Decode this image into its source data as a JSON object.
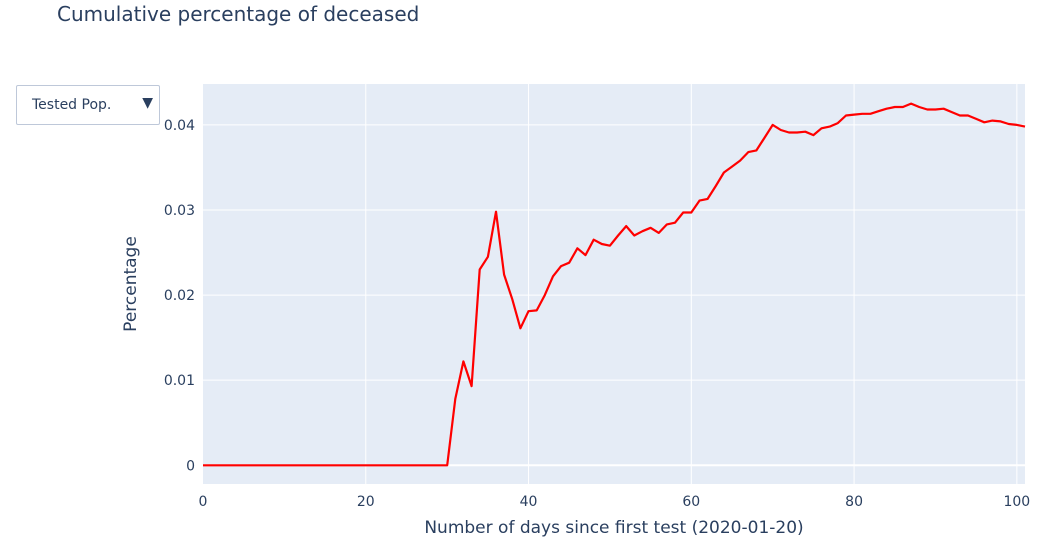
{
  "title": "Cumulative percentage of deceased",
  "dropdown": {
    "selected": "Tested Pop.",
    "arrow": "▼",
    "icon": "triangle-down"
  },
  "colors": {
    "plot_bg": "#e5ecf6",
    "grid": "#ffffff",
    "line": "#ff0000",
    "text": "#2a3f5f"
  },
  "chart_data": {
    "type": "line",
    "title": "Cumulative percentage of deceased",
    "xlabel": "Number of days since first test (2020-01-20)",
    "ylabel": "Percentage",
    "xlim": [
      0,
      101
    ],
    "ylim": [
      -0.0022,
      0.0448
    ],
    "xticks": [
      0,
      20,
      40,
      60,
      80,
      100
    ],
    "yticks": [
      0,
      0.01,
      0.02,
      0.03,
      0.04
    ],
    "ytick_labels": [
      "0",
      "0.01",
      "0.02",
      "0.03",
      "0.04"
    ],
    "grid": true,
    "legend": "none",
    "series": [
      {
        "x": [
          0,
          5,
          10,
          15,
          20,
          25,
          30,
          31,
          32,
          33,
          34,
          35,
          36,
          37,
          38,
          39,
          40,
          41,
          42,
          43,
          44,
          45,
          46,
          47,
          48,
          49,
          50,
          51,
          52,
          53,
          54,
          55,
          56,
          57,
          58,
          59,
          60,
          61,
          62,
          63,
          64,
          65,
          66,
          67,
          68,
          69,
          70,
          71,
          72,
          73,
          74,
          75,
          76,
          77,
          78,
          79,
          80,
          81,
          82,
          83,
          84,
          85,
          86,
          87,
          88,
          89,
          90,
          91,
          92,
          93,
          94,
          95,
          96,
          97,
          98,
          99,
          100,
          101
        ],
        "y": [
          0,
          0,
          0,
          0,
          0,
          0,
          0,
          0.0078,
          0.0122,
          0.0093,
          0.023,
          0.0245,
          0.0298,
          0.0224,
          0.0195,
          0.0161,
          0.0181,
          0.0182,
          0.02,
          0.0222,
          0.0234,
          0.0238,
          0.0255,
          0.0247,
          0.0265,
          0.026,
          0.0258,
          0.027,
          0.0281,
          0.027,
          0.0275,
          0.0279,
          0.0273,
          0.0283,
          0.0285,
          0.0297,
          0.0297,
          0.0311,
          0.0313,
          0.0328,
          0.0344,
          0.0351,
          0.0358,
          0.0368,
          0.037,
          0.0385,
          0.04,
          0.0394,
          0.0391,
          0.0391,
          0.0392,
          0.0388,
          0.0396,
          0.0398,
          0.0402,
          0.0411,
          0.0412,
          0.0413,
          0.0413,
          0.0416,
          0.0419,
          0.0421,
          0.0421,
          0.0425,
          0.0421,
          0.0418,
          0.0418,
          0.0419,
          0.0415,
          0.0411,
          0.0411,
          0.0407,
          0.0403,
          0.0405,
          0.0404,
          0.0401,
          0.04,
          0.0398
        ]
      }
    ]
  }
}
